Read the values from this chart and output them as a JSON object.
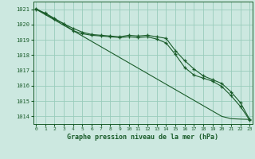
{
  "title": "Graphe pression niveau de la mer (hPa)",
  "xlabel_ticks": [
    0,
    1,
    2,
    3,
    4,
    5,
    6,
    7,
    8,
    9,
    10,
    11,
    12,
    13,
    14,
    15,
    16,
    17,
    18,
    19,
    20,
    21,
    22,
    23
  ],
  "ylim": [
    1013.5,
    1021.5
  ],
  "xlim": [
    -0.3,
    23.3
  ],
  "yticks": [
    1014,
    1015,
    1016,
    1017,
    1018,
    1019,
    1020,
    1021
  ],
  "bg_color": "#cce8e0",
  "grid_color": "#99ccbb",
  "line_color": "#1a5c2a",
  "line_straight": [
    1021.0,
    1020.65,
    1020.3,
    1019.95,
    1019.6,
    1019.25,
    1018.9,
    1018.55,
    1018.2,
    1017.85,
    1017.5,
    1017.15,
    1016.8,
    1016.45,
    1016.1,
    1015.75,
    1015.4,
    1015.05,
    1014.7,
    1014.35,
    1014.0,
    1013.85,
    1013.82,
    1013.8
  ],
  "line_upper": [
    1021.0,
    1020.75,
    1020.4,
    1020.05,
    1019.75,
    1019.5,
    1019.35,
    1019.3,
    1019.25,
    1019.2,
    1019.3,
    1019.25,
    1019.3,
    1019.2,
    1019.1,
    1018.3,
    1017.65,
    1017.1,
    1016.65,
    1016.4,
    1016.15,
    1015.6,
    1014.9,
    1013.8
  ],
  "line_lower": [
    1021.05,
    1020.7,
    1020.35,
    1020.05,
    1019.6,
    1019.4,
    1019.3,
    1019.25,
    1019.2,
    1019.15,
    1019.2,
    1019.15,
    1019.2,
    1019.05,
    1018.8,
    1018.05,
    1017.2,
    1016.7,
    1016.5,
    1016.3,
    1015.95,
    1015.35,
    1014.65,
    1013.75
  ]
}
